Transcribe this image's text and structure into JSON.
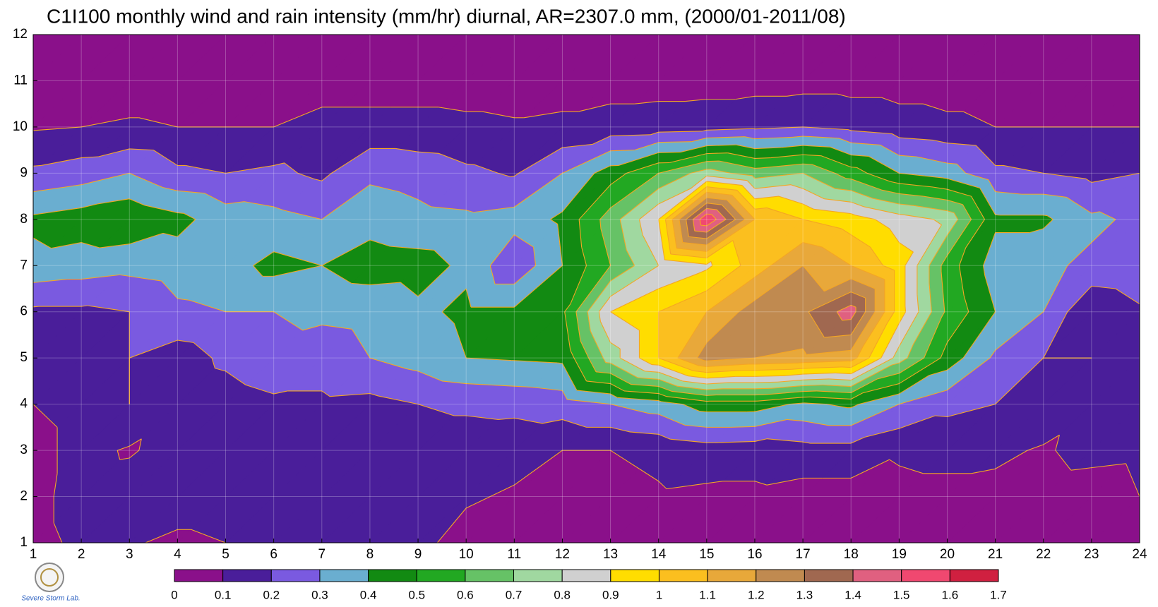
{
  "chart_data": {
    "type": "contour",
    "title": "C1I100 monthly wind and rain intensity (mm/hr) diurnal, AR=2307.0 mm, (2000/01-2011/08)",
    "logo_text": "Severe Storm Lab.",
    "x": [
      1,
      2,
      3,
      4,
      5,
      6,
      7,
      8,
      9,
      10,
      11,
      12,
      13,
      14,
      15,
      16,
      17,
      18,
      19,
      20,
      21,
      22,
      23,
      24
    ],
    "y": [
      1,
      2,
      3,
      4,
      5,
      6,
      7,
      8,
      9,
      10,
      11,
      12
    ],
    "z": [
      [
        0.07,
        0.12,
        0.11,
        0.08,
        0.1,
        0.12,
        0.13,
        0.12,
        0.12,
        0.07,
        0.06,
        0.05,
        0.05,
        0.05,
        0.05,
        0.05,
        0.05,
        0.05,
        0.05,
        0.05,
        0.05,
        0.05,
        0.05,
        0.05
      ],
      [
        0.07,
        0.14,
        0.15,
        0.15,
        0.15,
        0.14,
        0.14,
        0.13,
        0.13,
        0.11,
        0.09,
        0.08,
        0.07,
        0.09,
        0.08,
        0.08,
        0.06,
        0.06,
        0.08,
        0.08,
        0.07,
        0.06,
        0.05,
        0.1
      ],
      [
        0.07,
        0.13,
        0.09,
        0.14,
        0.15,
        0.15,
        0.15,
        0.15,
        0.14,
        0.14,
        0.13,
        0.1,
        0.1,
        0.12,
        0.15,
        0.14,
        0.16,
        0.16,
        0.11,
        0.12,
        0.12,
        0.09,
        0.13,
        0.12
      ],
      [
        0.1,
        0.13,
        0.2,
        0.13,
        0.15,
        0.18,
        0.18,
        0.17,
        0.2,
        0.22,
        0.23,
        0.25,
        0.3,
        0.35,
        0.45,
        0.45,
        0.38,
        0.42,
        0.3,
        0.23,
        0.2,
        0.17,
        0.12,
        0.1
      ],
      [
        0.17,
        0.16,
        0.2,
        0.15,
        0.22,
        0.27,
        0.25,
        0.3,
        0.34,
        0.4,
        0.41,
        0.42,
        0.75,
        1.0,
        1.25,
        1.2,
        1.18,
        1.15,
        0.75,
        0.46,
        0.28,
        0.2,
        0.2,
        0.17
      ],
      [
        0.18,
        0.18,
        0.2,
        0.28,
        0.3,
        0.3,
        0.32,
        0.33,
        0.38,
        0.42,
        0.42,
        0.48,
        0.9,
        1.0,
        1.1,
        1.25,
        1.28,
        1.45,
        0.95,
        0.58,
        0.4,
        0.3,
        0.1,
        0.18
      ],
      [
        0.37,
        0.35,
        0.33,
        0.35,
        0.36,
        0.43,
        0.4,
        0.45,
        0.44,
        0.38,
        0.22,
        0.4,
        0.6,
        0.8,
        0.88,
        1.05,
        1.2,
        1.1,
        0.95,
        0.55,
        0.35,
        0.32,
        0.28,
        0.3
      ],
      [
        0.42,
        0.45,
        0.48,
        0.43,
        0.35,
        0.33,
        0.3,
        0.36,
        0.33,
        0.32,
        0.34,
        0.42,
        0.65,
        0.9,
        1.6,
        1.1,
        1.0,
        0.95,
        0.85,
        0.78,
        0.42,
        0.42,
        0.32,
        0.28
      ],
      [
        0.22,
        0.25,
        0.3,
        0.22,
        0.2,
        0.22,
        0.18,
        0.28,
        0.26,
        0.22,
        0.19,
        0.3,
        0.45,
        0.6,
        0.75,
        0.65,
        0.7,
        0.55,
        0.4,
        0.35,
        0.22,
        0.2,
        0.17,
        0.2
      ],
      [
        0.09,
        0.1,
        0.11,
        0.1,
        0.1,
        0.1,
        0.13,
        0.13,
        0.13,
        0.12,
        0.11,
        0.12,
        0.14,
        0.15,
        0.16,
        0.18,
        0.2,
        0.17,
        0.14,
        0.12,
        0.1,
        0.1,
        0.1,
        0.1
      ],
      [
        0.06,
        0.06,
        0.06,
        0.06,
        0.06,
        0.06,
        0.06,
        0.06,
        0.06,
        0.06,
        0.06,
        0.06,
        0.06,
        0.06,
        0.06,
        0.06,
        0.06,
        0.06,
        0.06,
        0.06,
        0.06,
        0.06,
        0.06,
        0.06
      ],
      [
        0.05,
        0.05,
        0.05,
        0.05,
        0.05,
        0.05,
        0.05,
        0.05,
        0.05,
        0.05,
        0.05,
        0.05,
        0.05,
        0.05,
        0.05,
        0.05,
        0.05,
        0.05,
        0.05,
        0.05,
        0.05,
        0.05,
        0.05,
        0.05
      ]
    ],
    "levels": [
      0,
      0.1,
      0.2,
      0.3,
      0.4,
      0.5,
      0.6,
      0.7,
      0.8,
      0.9,
      1,
      1.1,
      1.2,
      1.3,
      1.4,
      1.5,
      1.6,
      1.7
    ],
    "colors": [
      "#8a108a",
      "#4a1e9a",
      "#7a5ae0",
      "#6aaed0",
      "#128a12",
      "#22a822",
      "#66c266",
      "#a0d8a0",
      "#d0d0d0",
      "#ffdd00",
      "#fbbf1f",
      "#e8a83a",
      "#c08a50",
      "#a06850",
      "#e06080",
      "#f04870",
      "#d02040"
    ],
    "contour_line_color": "#f5a623",
    "xlim": [
      1,
      24
    ],
    "ylim": [
      1,
      12
    ],
    "xticks": [
      1,
      2,
      3,
      4,
      5,
      6,
      7,
      8,
      9,
      10,
      11,
      12,
      13,
      14,
      15,
      16,
      17,
      18,
      19,
      20,
      21,
      22,
      23,
      24
    ],
    "yticks": [
      1,
      2,
      3,
      4,
      5,
      6,
      7,
      8,
      9,
      10,
      11,
      12
    ],
    "grid": true
  }
}
